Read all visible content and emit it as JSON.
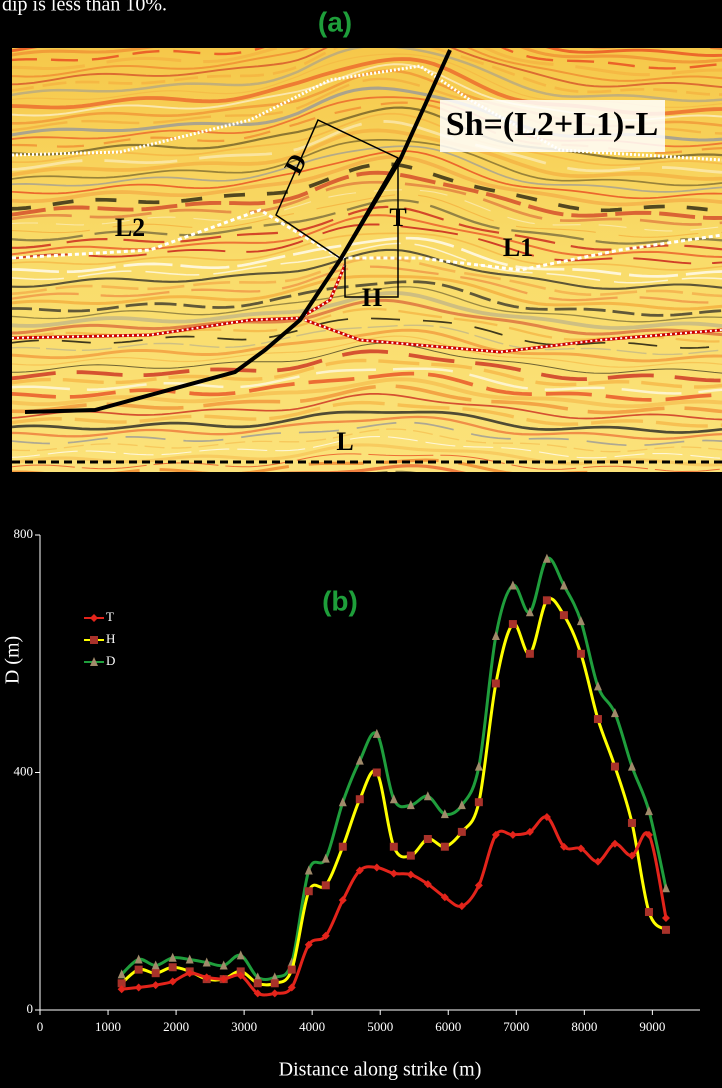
{
  "caption_fragment": "dip is less than 10%.",
  "panel_a": {
    "label": "(a)",
    "formula": "Sh=(L2+L1)-L",
    "labels": {
      "D": "D",
      "T": "T",
      "H": "H",
      "L2": "L2",
      "L1": "L1",
      "L": "L"
    }
  },
  "chart_data": {
    "type": "line",
    "title": "(b)",
    "x_label": "Distance along strike (m)",
    "y_label": "D (m)",
    "x": [
      1200,
      1450,
      1700,
      1950,
      2200,
      2450,
      2700,
      2950,
      3200,
      3450,
      3700,
      3950,
      4200,
      4450,
      4700,
      4950,
      5200,
      5450,
      5700,
      5950,
      6200,
      6450,
      6700,
      6950,
      7200,
      7450,
      7700,
      7950,
      8200,
      8450,
      8700,
      8950,
      9200
    ],
    "series": [
      {
        "name": "T",
        "color": "#e3241b",
        "marker": "diamond",
        "marker_color": "#e3241b",
        "values": [
          35,
          38,
          42,
          48,
          62,
          55,
          52,
          58,
          28,
          28,
          38,
          110,
          125,
          185,
          235,
          240,
          230,
          228,
          212,
          190,
          175,
          210,
          295,
          295,
          300,
          325,
          275,
          272,
          250,
          280,
          260,
          295,
          155
        ]
      },
      {
        "name": "H",
        "color": "#ffff00",
        "marker": "square",
        "marker_color": "#a8322a",
        "values": [
          45,
          68,
          62,
          72,
          65,
          52,
          52,
          65,
          45,
          45,
          68,
          200,
          210,
          275,
          355,
          400,
          275,
          260,
          288,
          275,
          300,
          350,
          550,
          650,
          600,
          690,
          665,
          600,
          490,
          410,
          315,
          165,
          135
        ]
      },
      {
        "name": "D",
        "color": "#1f9e3c",
        "marker": "triangle",
        "marker_color": "#a08a6a",
        "values": [
          60,
          85,
          75,
          88,
          85,
          80,
          75,
          92,
          55,
          55,
          80,
          235,
          255,
          350,
          420,
          465,
          355,
          345,
          360,
          330,
          345,
          410,
          630,
          715,
          670,
          760,
          715,
          655,
          545,
          500,
          410,
          335,
          205
        ]
      }
    ],
    "xlim": [
      0,
      9700
    ],
    "ylim": [
      0,
      800
    ],
    "xticks": [
      0,
      1000,
      2000,
      3000,
      4000,
      5000,
      6000,
      7000,
      8000,
      9000
    ],
    "yticks": [
      0,
      400,
      800
    ],
    "legend": "upper-left"
  }
}
